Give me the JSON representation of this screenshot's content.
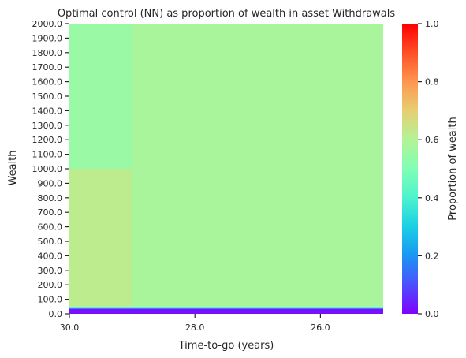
{
  "chart_data": {
    "type": "heatmap",
    "title": "Optimal control (NN) as proportion of wealth in asset Withdrawals",
    "xlabel": "Time-to-go (years)",
    "ylabel": "Wealth",
    "x_ticks": [
      "30.0",
      "28.0",
      "26.0"
    ],
    "x_range_years": [
      30.0,
      25.0
    ],
    "y_ticks": [
      "0.0",
      "100.0",
      "200.0",
      "300.0",
      "400.0",
      "500.0",
      "600.0",
      "700.0",
      "800.0",
      "900.0",
      "1000.0",
      "1100.0",
      "1200.0",
      "1300.0",
      "1400.0",
      "1500.0",
      "1600.0",
      "1700.0",
      "1800.0",
      "1900.0",
      "2000.0"
    ],
    "y_range": [
      0.0,
      2000.0
    ],
    "colorbar": {
      "label": "Proportion of wealth",
      "range": [
        0.0,
        1.0
      ],
      "ticks": [
        "0.0",
        "0.2",
        "0.4",
        "0.6",
        "0.8",
        "1.0"
      ],
      "colormap": "rainbow"
    },
    "regions": [
      {
        "x_from": 30.0,
        "x_to": 25.0,
        "y_from": 0.0,
        "y_to": 35.0,
        "value": 0.02
      },
      {
        "x_from": 30.0,
        "x_to": 25.0,
        "y_from": 35.0,
        "y_to": 45.0,
        "value": 0.25
      },
      {
        "x_from": 30.0,
        "x_to": 25.0,
        "y_from": 45.0,
        "y_to": 50.0,
        "value": 0.42
      },
      {
        "x_from": 30.0,
        "x_to": 29.0,
        "y_from": 50.0,
        "y_to": 1000.0,
        "value": 0.62
      },
      {
        "x_from": 30.0,
        "x_to": 29.0,
        "y_from": 1000.0,
        "y_to": 2000.0,
        "value": 0.55
      },
      {
        "x_from": 29.0,
        "x_to": 25.0,
        "y_from": 50.0,
        "y_to": 2000.0,
        "value": 0.58
      }
    ]
  }
}
